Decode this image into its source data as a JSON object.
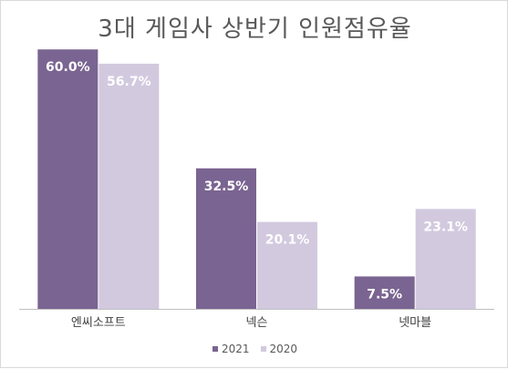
{
  "chart_data": {
    "type": "bar",
    "title": "3대 게임사 상반기 인원점유율",
    "categories": [
      "엔씨소프트",
      "넥슨",
      "넷마블"
    ],
    "series": [
      {
        "name": "2021",
        "values": [
          60.0,
          32.5,
          7.5
        ],
        "labels": [
          "60.0%",
          "32.5%",
          "7.5%"
        ],
        "color": "#7a6491"
      },
      {
        "name": "2020",
        "values": [
          56.7,
          20.1,
          23.1
        ],
        "labels": [
          "56.7%",
          "20.1%",
          "23.1%"
        ],
        "color": "#d2c9df"
      }
    ],
    "ylim": [
      0,
      63
    ],
    "grid": false,
    "legend_position": "bottom"
  }
}
